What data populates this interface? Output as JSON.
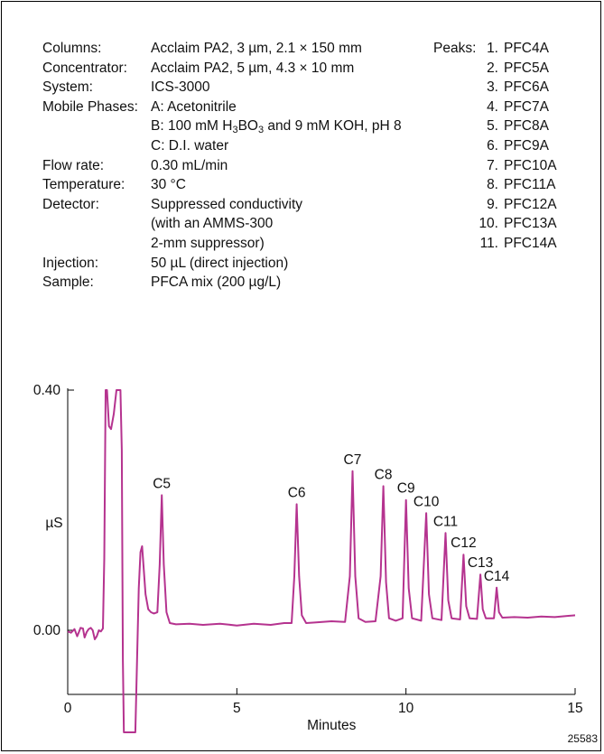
{
  "conditions": [
    {
      "label": "Columns:",
      "value": "Acclaim PA2, 3 µm, 2.1 × 150 mm"
    },
    {
      "label": "Concentrator:",
      "value": "Acclaim PA2, 5 µm, 4.3 × 10 mm"
    },
    {
      "label": "System:",
      "value": "ICS-3000"
    },
    {
      "label": "Mobile Phases:",
      "value": "A: Acetonitrile"
    },
    {
      "label": "",
      "value_parts": [
        "B: 100 mM H",
        "3",
        "BO",
        "3",
        " and 9 mM KOH, pH 8"
      ]
    },
    {
      "label": "",
      "value": "C: D.I. water"
    },
    {
      "label": "Flow rate:",
      "value": "0.30 mL/min"
    },
    {
      "label": "Temperature:",
      "value": "30 °C"
    },
    {
      "label": "Detector:",
      "value": "Suppressed conductivity"
    },
    {
      "label": "",
      "value": "(with an AMMS-300"
    },
    {
      "label": "",
      "value": "2-mm suppressor)"
    },
    {
      "label": "Injection:",
      "value": "50 µL (direct injection)"
    },
    {
      "label": "Sample:",
      "value": "PFCA mix (200 µg/L)"
    }
  ],
  "peaks_title": "Peaks:",
  "peaks_list": [
    {
      "num": "1.",
      "name": "PFC4A"
    },
    {
      "num": "2.",
      "name": "PFC5A"
    },
    {
      "num": "3.",
      "name": "PFC6A"
    },
    {
      "num": "4.",
      "name": "PFC7A"
    },
    {
      "num": "5.",
      "name": "PFC8A"
    },
    {
      "num": "6.",
      "name": "PFC9A"
    },
    {
      "num": "7.",
      "name": "PFC10A"
    },
    {
      "num": "8.",
      "name": "PFC11A"
    },
    {
      "num": "9.",
      "name": "PFC12A"
    },
    {
      "num": "10.",
      "name": "PFC13A"
    },
    {
      "num": "11.",
      "name": "PFC14A"
    }
  ],
  "figure_id": "25583",
  "chart_data": {
    "type": "line",
    "xlabel": "Minutes",
    "ylabel": "µS",
    "xlim": [
      0,
      15
    ],
    "ylim": [
      -0.17,
      0.4
    ],
    "x_ticks": [
      0,
      5,
      10,
      15
    ],
    "y_ticks": [
      {
        "value": 0.4,
        "label": "0.40"
      },
      {
        "value": 0.0,
        "label": "0.00"
      }
    ],
    "line_color": "#b5338f",
    "peaks": [
      {
        "label": "C5",
        "x": 2.78,
        "y": 0.225
      },
      {
        "label": "C6",
        "x": 6.77,
        "y": 0.21
      },
      {
        "label": "C7",
        "x": 8.42,
        "y": 0.265
      },
      {
        "label": "C8",
        "x": 9.33,
        "y": 0.24
      },
      {
        "label": "C9",
        "x": 10.0,
        "y": 0.217
      },
      {
        "label": "C10",
        "x": 10.6,
        "y": 0.195
      },
      {
        "label": "C11",
        "x": 11.17,
        "y": 0.162
      },
      {
        "label": "C12",
        "x": 11.7,
        "y": 0.126
      },
      {
        "label": "C13",
        "x": 12.2,
        "y": 0.093
      },
      {
        "label": "C14",
        "x": 12.68,
        "y": 0.071
      }
    ],
    "series": [
      {
        "x": [
          0.0,
          0.1,
          0.2,
          0.28,
          0.33,
          0.38,
          0.45,
          0.5,
          0.56,
          0.62,
          0.68,
          0.74,
          0.8,
          0.86,
          0.92,
          0.98,
          1.04,
          1.08,
          1.12,
          1.16,
          1.22,
          1.28,
          1.36,
          1.44,
          1.5,
          1.56,
          1.6,
          1.63,
          1.66,
          1.7,
          1.75,
          1.8,
          1.85,
          1.9,
          1.95,
          2.0,
          2.05,
          2.1,
          2.15,
          2.2,
          2.25,
          2.3,
          2.38,
          2.46,
          2.55,
          2.65,
          2.72,
          2.78,
          2.84,
          2.92,
          3.02,
          3.2,
          3.6,
          4.0,
          4.5,
          5.0,
          5.5,
          6.0,
          6.4,
          6.62,
          6.7,
          6.77,
          6.84,
          6.92,
          7.05,
          7.3,
          7.8,
          8.2,
          8.34,
          8.42,
          8.5,
          8.6,
          8.8,
          9.1,
          9.25,
          9.33,
          9.41,
          9.5,
          9.7,
          9.9,
          10.0,
          10.08,
          10.18,
          10.45,
          10.6,
          10.68,
          10.78,
          11.05,
          11.17,
          11.25,
          11.35,
          11.6,
          11.7,
          11.78,
          11.88,
          12.1,
          12.2,
          12.27,
          12.36,
          12.6,
          12.68,
          12.75,
          12.85,
          13.2,
          13.6,
          14.0,
          14.4,
          14.8,
          15.0
        ],
        "y": [
          -0.002,
          -0.004,
          0.002,
          -0.01,
          -0.003,
          0.004,
          0.003,
          -0.012,
          -0.003,
          0.002,
          0.004,
          0.0,
          -0.015,
          -0.01,
          0.0,
          -0.002,
          0.003,
          0.12,
          0.4,
          0.4,
          0.34,
          0.335,
          0.36,
          0.4,
          0.4,
          0.4,
          0.3,
          -0.05,
          -0.17,
          -0.17,
          -0.17,
          -0.17,
          -0.17,
          -0.17,
          -0.17,
          -0.17,
          -0.05,
          0.07,
          0.13,
          0.14,
          0.1,
          0.06,
          0.035,
          0.03,
          0.028,
          0.03,
          0.11,
          0.225,
          0.11,
          0.03,
          0.012,
          0.01,
          0.011,
          0.009,
          0.011,
          0.008,
          0.011,
          0.009,
          0.012,
          0.012,
          0.09,
          0.21,
          0.09,
          0.025,
          0.012,
          0.013,
          0.015,
          0.014,
          0.09,
          0.265,
          0.09,
          0.02,
          0.014,
          0.015,
          0.09,
          0.24,
          0.08,
          0.02,
          0.016,
          0.02,
          0.217,
          0.07,
          0.02,
          0.016,
          0.195,
          0.06,
          0.02,
          0.017,
          0.162,
          0.05,
          0.02,
          0.018,
          0.126,
          0.04,
          0.02,
          0.019,
          0.093,
          0.035,
          0.02,
          0.02,
          0.071,
          0.03,
          0.021,
          0.022,
          0.021,
          0.023,
          0.022,
          0.024,
          0.025
        ]
      }
    ]
  }
}
